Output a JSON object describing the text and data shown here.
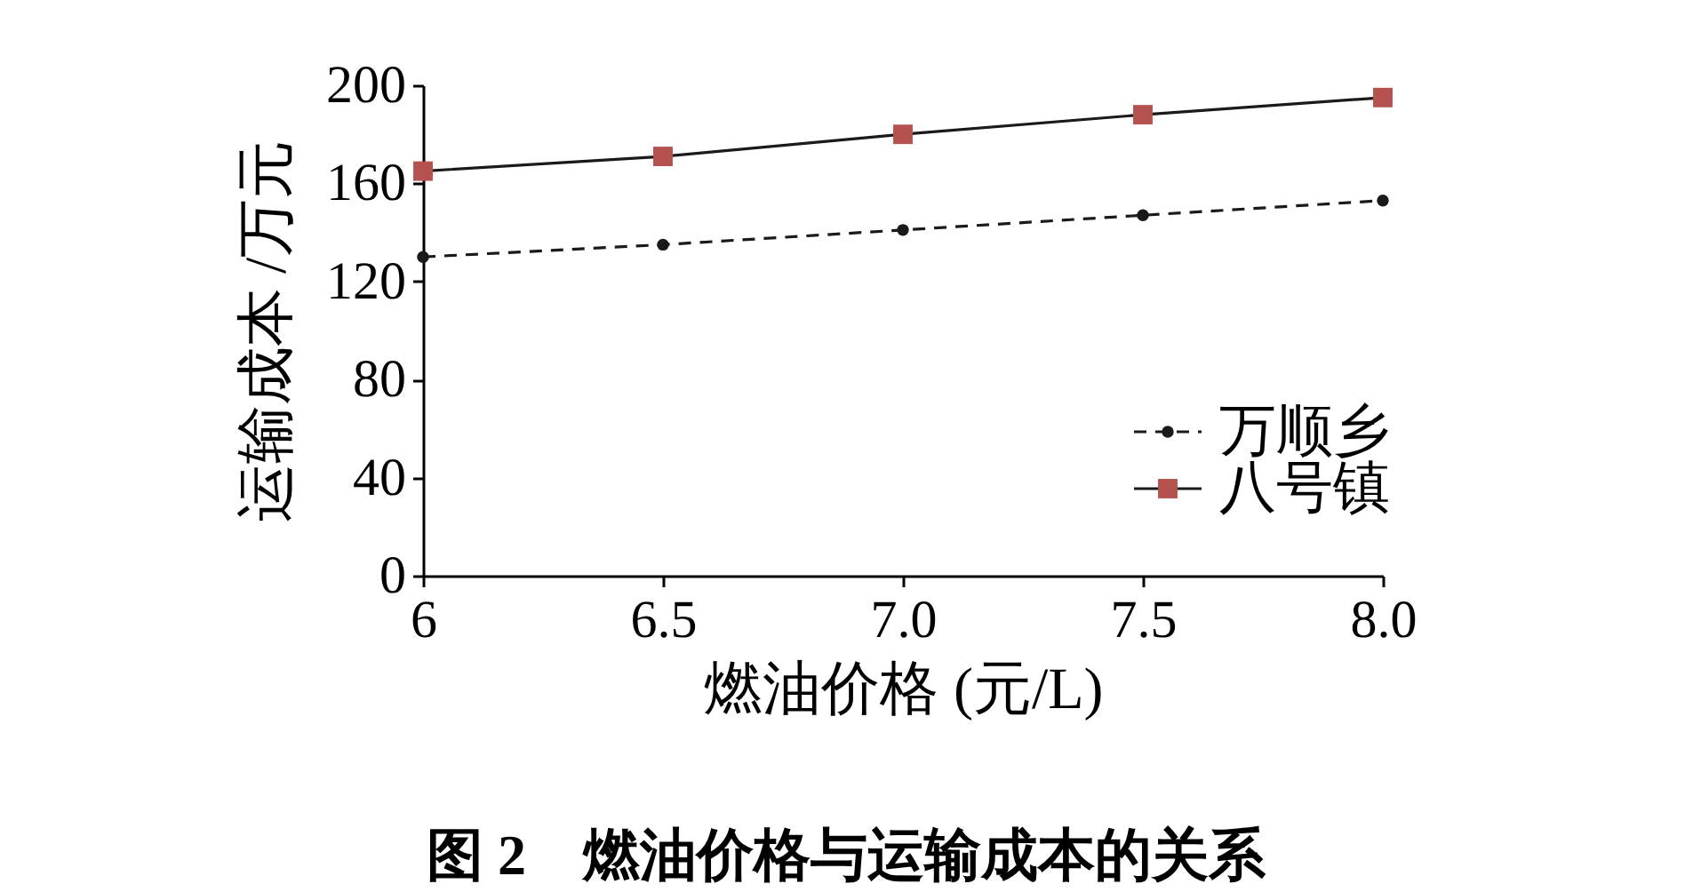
{
  "chart_data": {
    "type": "line",
    "title": "图 2　燃油价格与运输成本的关系",
    "xlabel": "燃油价格 (元/L)",
    "ylabel": "运输成本 /万元",
    "x": [
      6,
      6.5,
      7,
      7.5,
      8
    ],
    "series": [
      {
        "name": "万顺乡",
        "color": "#1a1a1a",
        "values": [
          130,
          135,
          141,
          147,
          153
        ],
        "line_style": "dashed",
        "marker": "circle"
      },
      {
        "name": "八号镇",
        "color": "#b5524f",
        "values": [
          165,
          171,
          180,
          188,
          195
        ],
        "line_style": "solid",
        "marker": "square"
      }
    ],
    "xlim": [
      6,
      8
    ],
    "xticks": [
      6,
      6.5,
      {
        "value": 7,
        "label": "7.0"
      },
      7.5,
      {
        "value": 8,
        "label": "8.0"
      }
    ],
    "ylim": [
      0,
      200
    ],
    "yticks": [
      0,
      40,
      80,
      120,
      160,
      200
    ],
    "grid": false,
    "legend": "bottom right"
  }
}
